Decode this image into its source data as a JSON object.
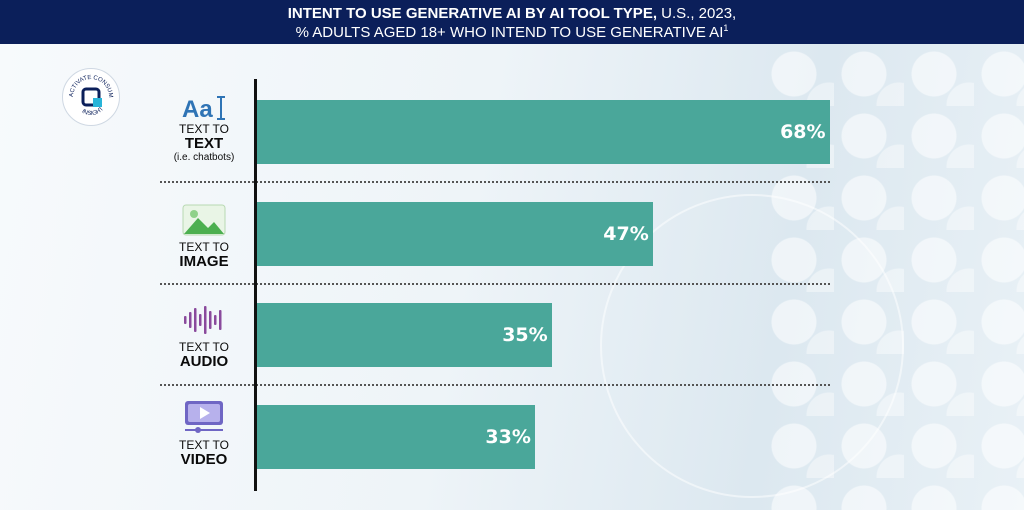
{
  "header": {
    "title_bold": "INTENT TO USE GENERATIVE AI BY AI TOOL TYPE,",
    "title_rest": " U.S., 2023,",
    "subtitle": "% ADULTS AGED 18+ WHO INTEND TO USE GENERATIVE AI",
    "footnote_marker": "1"
  },
  "logo": {
    "text_top": "ACTIVATE CONSUMER",
    "text_bottom": "INSIGHT"
  },
  "colors": {
    "bar": "#4aa79a",
    "header_bg": "#0b1f5a",
    "text_icon": "#2f74b5",
    "image_icon": "#5cb85c",
    "audio_icon": "#8a4a9c",
    "video_icon": "#6f66c4"
  },
  "categories": [
    {
      "line1": "TEXT TO",
      "line2": "TEXT",
      "line3": "(i.e. chatbots)",
      "icon": "text-aa-icon",
      "value_label": "68%"
    },
    {
      "line1": "TEXT TO",
      "line2": "IMAGE",
      "line3": "",
      "icon": "image-icon",
      "value_label": "47%"
    },
    {
      "line1": "TEXT TO",
      "line2": "AUDIO",
      "line3": "",
      "icon": "audio-waveform-icon",
      "value_label": "35%"
    },
    {
      "line1": "TEXT TO",
      "line2": "VIDEO",
      "line3": "",
      "icon": "video-play-icon",
      "value_label": "33%"
    }
  ],
  "chart_data": {
    "type": "bar",
    "orientation": "horizontal",
    "title": "INTENT TO USE GENERATIVE AI BY AI TOOL TYPE, U.S., 2023,",
    "subtitle": "% ADULTS AGED 18+ WHO INTEND TO USE GENERATIVE AI",
    "categories": [
      "TEXT TO TEXT (i.e. chatbots)",
      "TEXT TO IMAGE",
      "TEXT TO AUDIO",
      "TEXT TO VIDEO"
    ],
    "values": [
      68,
      47,
      35,
      33
    ],
    "value_labels": [
      "68%",
      "47%",
      "35%",
      "33%"
    ],
    "xlim": [
      0,
      100
    ],
    "grid": false,
    "legend": "none"
  }
}
